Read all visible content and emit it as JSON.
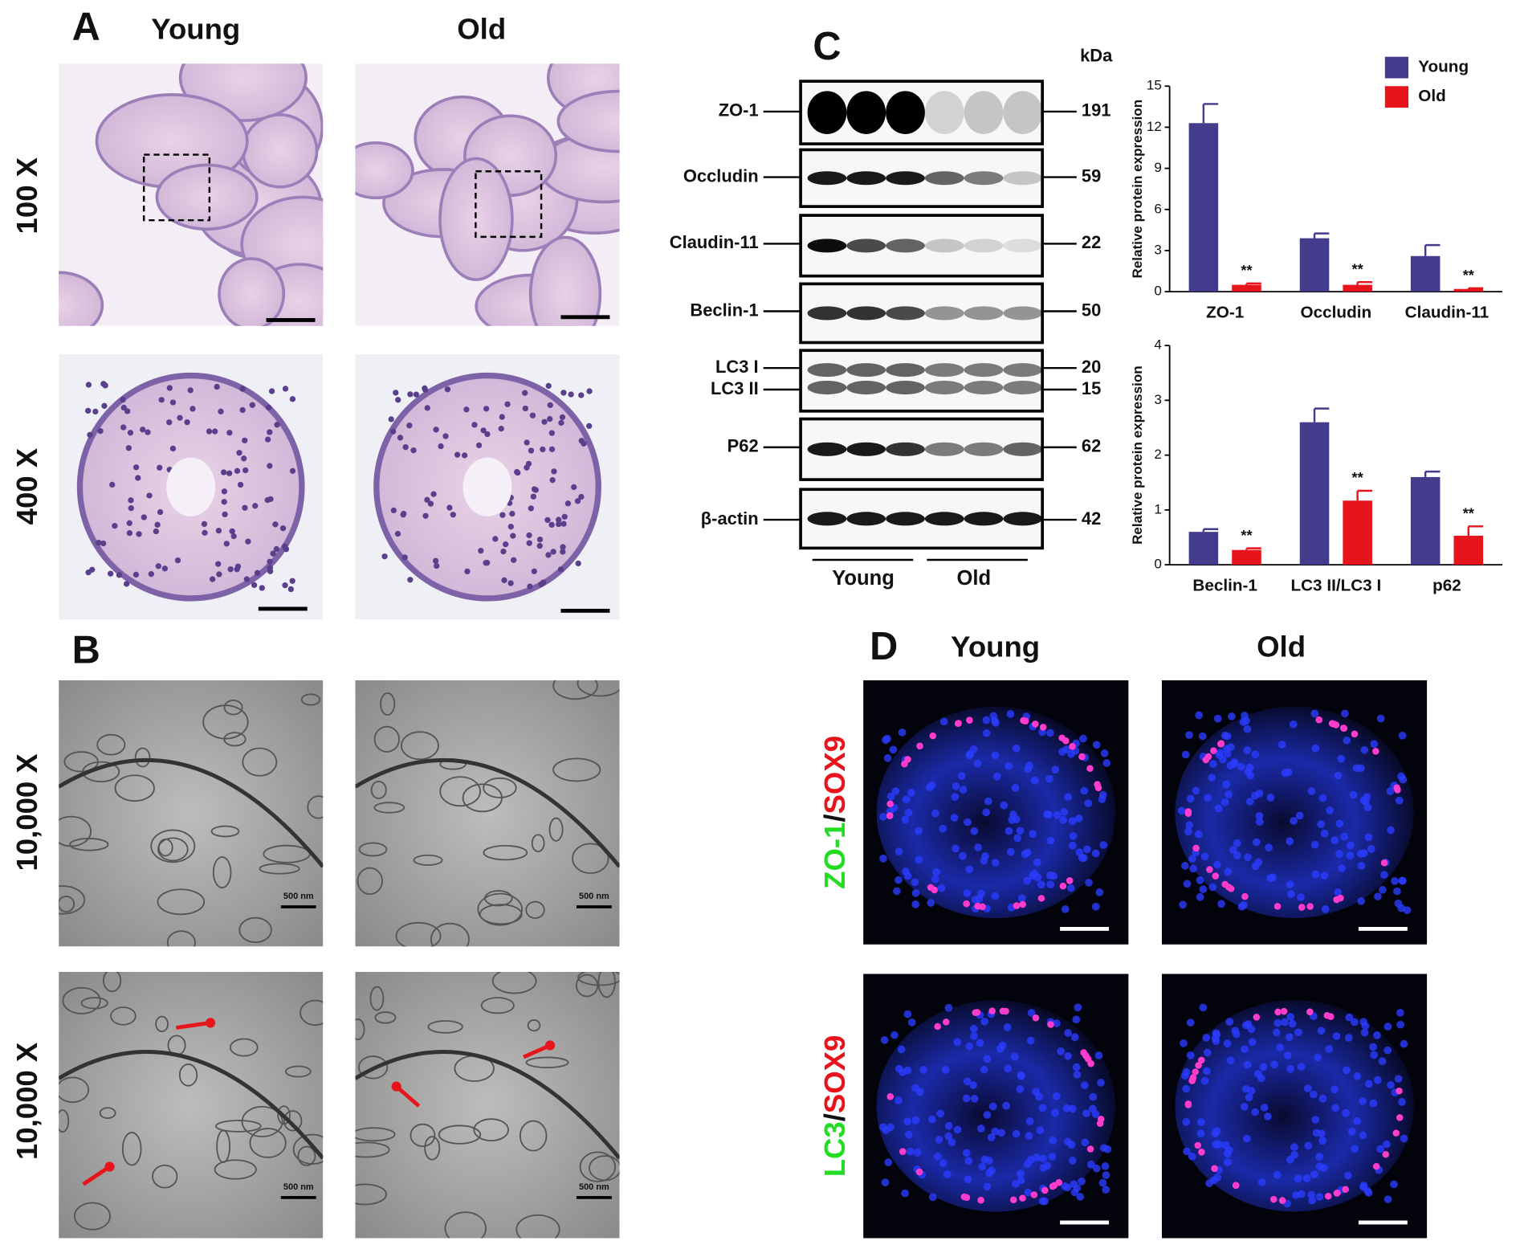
{
  "panel_a": {
    "letter": "A",
    "columns": [
      "Young",
      "Old"
    ],
    "rows": [
      "100 X",
      "400 X"
    ]
  },
  "panel_b": {
    "letter": "B",
    "rows": [
      "10,000 X",
      "10,000 X"
    ],
    "scale_label": "500 nm"
  },
  "panel_c": {
    "letter": "C",
    "unit": "kDa",
    "groups": [
      "Young",
      "Old"
    ],
    "blots": [
      {
        "label": "ZO-1",
        "kda": 191
      },
      {
        "label": "Occludin",
        "kda": 59
      },
      {
        "label": "Claudin-11",
        "kda": 22
      },
      {
        "label": "Beclin-1",
        "kda": 50
      },
      {
        "label": "LC3 I",
        "kda": 20
      },
      {
        "label": "LC3 II",
        "kda": 15
      },
      {
        "label": "P62",
        "kda": 62
      },
      {
        "label": "β-actin",
        "kda": 42
      }
    ]
  },
  "chart_data": [
    {
      "type": "bar",
      "ylabel": "Relative protein expression",
      "categories": [
        "ZO-1",
        "Occludin",
        "Claudin-11"
      ],
      "series": [
        {
          "name": "Young",
          "color": "#433c8c",
          "values": [
            12.3,
            3.9,
            2.6
          ],
          "errors": [
            1.4,
            0.35,
            0.8
          ]
        },
        {
          "name": "Old",
          "color": "#e8141c",
          "values": [
            0.5,
            0.5,
            0.2
          ],
          "errors": [
            0.1,
            0.2,
            0.05
          ],
          "significance": [
            "**",
            "**",
            "**"
          ]
        }
      ],
      "ylim": [
        0,
        15
      ],
      "yticks": [
        0,
        3,
        6,
        9,
        12,
        15
      ],
      "legend": "upper right"
    },
    {
      "type": "bar",
      "ylabel": "Relative protein expression",
      "categories": [
        "Beclin-1",
        "LC3 II/LC3 I",
        "p62"
      ],
      "series": [
        {
          "name": "Young",
          "color": "#433c8c",
          "values": [
            0.6,
            2.6,
            1.6
          ],
          "errors": [
            0.05,
            0.25,
            0.1
          ]
        },
        {
          "name": "Old",
          "color": "#e8141c",
          "values": [
            0.27,
            1.17,
            0.53
          ],
          "errors": [
            0.03,
            0.18,
            0.17
          ],
          "significance": [
            "**",
            "**",
            "**"
          ]
        }
      ],
      "ylim": [
        0,
        4
      ],
      "yticks": [
        0,
        1,
        2,
        3,
        4
      ]
    }
  ],
  "panel_d": {
    "letter": "D",
    "columns": [
      "Young",
      "Old"
    ],
    "rows": [
      {
        "marker": "ZO-1",
        "separator": "/",
        "counterstain": "SOX9"
      },
      {
        "marker": "LC3",
        "separator": "/",
        "counterstain": "SOX9"
      }
    ]
  }
}
